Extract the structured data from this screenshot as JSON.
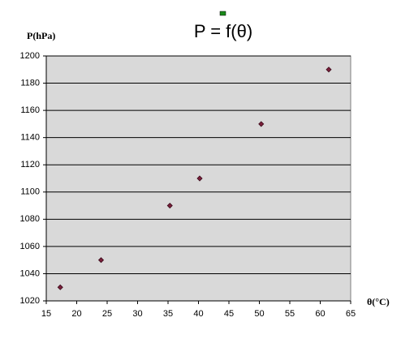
{
  "chart_data": {
    "type": "scatter",
    "title": "P = f(θ)",
    "x_label": "θ(°C)",
    "y_label": "P(hPa)",
    "x": [
      17.3,
      24,
      35.3,
      40.2,
      50.3,
      61.4
    ],
    "values": [
      1030,
      1050,
      1090,
      1110,
      1150,
      1190
    ],
    "color": "#7a1f3a",
    "xlim": [
      15,
      65
    ],
    "xticks": [
      15,
      20,
      25,
      30,
      35,
      40,
      45,
      50,
      55,
      60,
      65
    ],
    "ylim": [
      1020,
      1200
    ],
    "yticks": [
      1020,
      1040,
      1060,
      1080,
      1100,
      1120,
      1140,
      1160,
      1180,
      1200
    ],
    "grid": true
  }
}
